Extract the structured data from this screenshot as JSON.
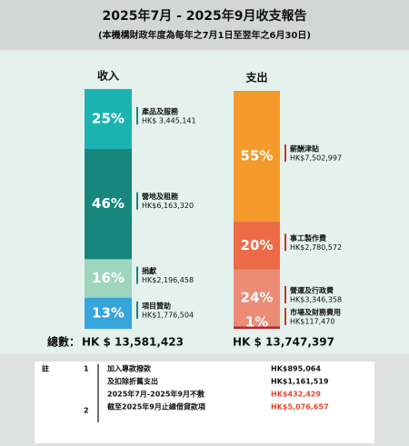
{
  "header": {
    "title": "2025年7月 - 2025年9月收支報告",
    "subtitle": "(本機構財政年度為每年之7月1日至翌年之6月30日)"
  },
  "chart_data": [
    {
      "type": "stacked-bar",
      "title": "收入",
      "categories": [
        "產品及服務",
        "營地及租務",
        "捐獻",
        "項目贊助"
      ],
      "values": [
        25,
        46,
        16,
        13
      ],
      "value_labels": [
        "25%",
        "46%",
        "16%",
        "13%"
      ],
      "amounts": [
        "HK$ 3,445,141",
        "HK$6,163,320",
        "HK$2,196,458",
        "HK$1,776,504"
      ],
      "colors": [
        "#1bb3b1",
        "#17877e",
        "#9ed5bf",
        "#36a5dc"
      ],
      "marker_color": "#17877e"
    },
    {
      "type": "stacked-bar",
      "title": "支出",
      "categories": [
        "薪酬津貼",
        "事工製作費",
        "營運及行政費",
        "市場及財務費用"
      ],
      "values": [
        55,
        20,
        24,
        1
      ],
      "value_labels": [
        "55%",
        "20%",
        "24%",
        "1%"
      ],
      "amounts": [
        "HK$7,502,997",
        "HK$2,780,572",
        "HK$3,346,358",
        "HK$117,470"
      ],
      "colors": [
        "#f39a2b",
        "#ee6b48",
        "#ec8c76",
        "#b3282d"
      ],
      "marker_color": "#c0392b"
    }
  ],
  "totals": {
    "label": "總數：",
    "income": "HK $ 13,581,423",
    "expenditure": "HK $ 13,747,397"
  },
  "notes": {
    "label": "註",
    "numbers": [
      "1",
      "2"
    ],
    "rows": [
      {
        "text": "加入專款撥款",
        "amount": "HK$895,064",
        "color": "#111111"
      },
      {
        "text": "及扣除折舊支出",
        "amount": "HK$1,161,519",
        "color": "#111111"
      },
      {
        "text": "2025年7月-2025年9月不敷",
        "amount": "HK$432,429",
        "color": "#e8432f"
      },
      {
        "text": "截至2025年9月止總借貸款項",
        "amount": "HK$5,076,657",
        "color": "#e8432f"
      }
    ]
  }
}
